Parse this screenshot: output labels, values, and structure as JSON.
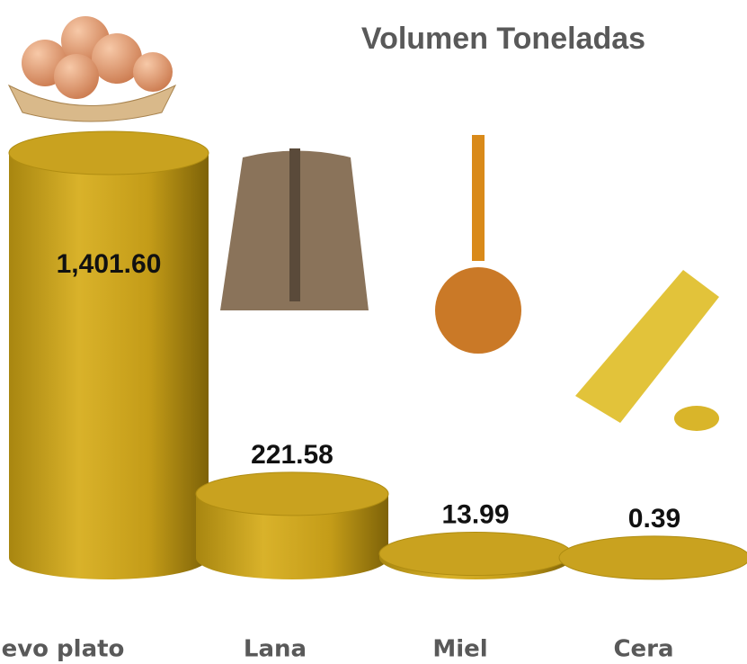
{
  "chart_data": {
    "type": "cylinder",
    "title": "Volumen Toneladas",
    "categories": [
      "evo plato",
      "Lana",
      "Miel",
      "Cera"
    ],
    "values": [
      1401.6,
      221.58,
      13.99,
      0.39
    ],
    "value_labels": [
      "1,401.60",
      "221.58",
      "13.99",
      "0.39"
    ],
    "color": "#c9a21f"
  }
}
